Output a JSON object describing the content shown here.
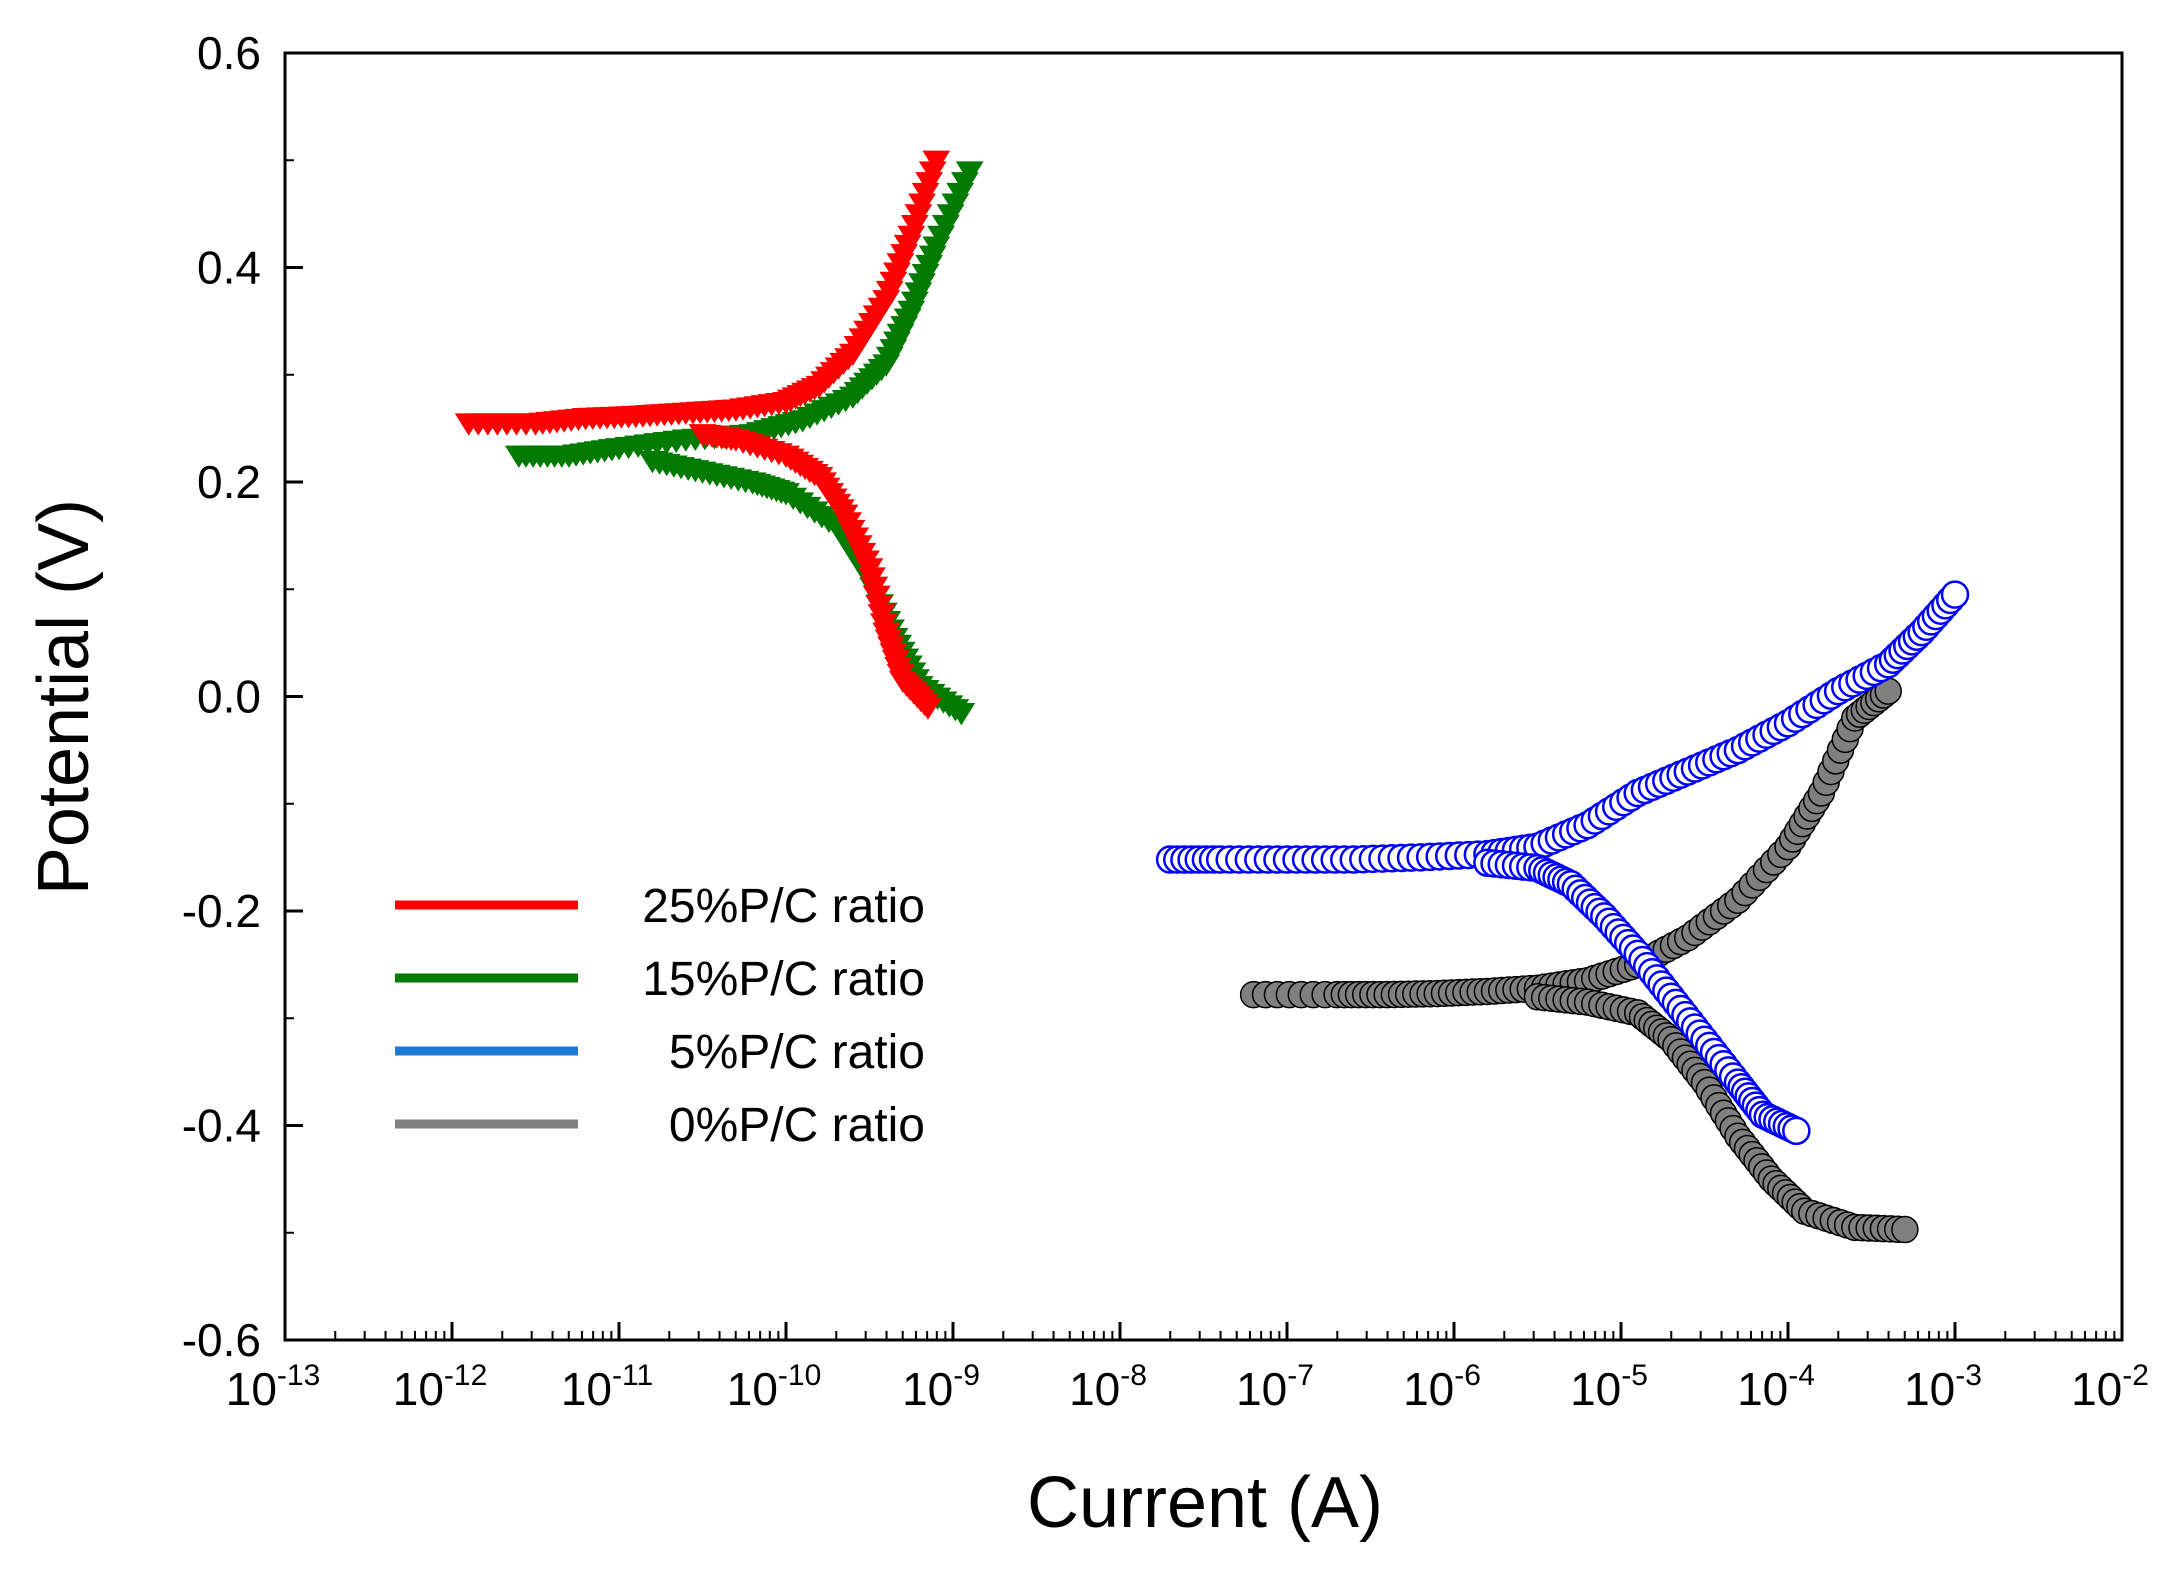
{
  "chart_data": {
    "type": "scatter",
    "title": "",
    "xlabel": "Current (A)",
    "ylabel": "Potential (V)",
    "xscale": "log",
    "xlim_exponent": [
      -13,
      -2
    ],
    "ylim": [
      -0.6,
      0.6
    ],
    "x_tick_base": "10",
    "x_tick_exponents": [
      "-13",
      "-12",
      "-11",
      "-10",
      "-9",
      "-8",
      "-7",
      "-6",
      "-5",
      "-4",
      "-3",
      "-2"
    ],
    "y_ticks": [
      "0.6",
      "0.4",
      "0.2",
      "0.0",
      "-0.2",
      "-0.4",
      "-0.6"
    ],
    "y_tick_values": [
      0.6,
      0.4,
      0.2,
      0.0,
      -0.2,
      -0.4,
      -0.6
    ],
    "grid": false,
    "legend_position": "lower-left",
    "series": [
      {
        "name": "25%P/C ratio",
        "color": "#ff0000",
        "marker": "triangle-down",
        "anodic": [
          [
            -11.9,
            0.255
          ],
          [
            -11.5,
            0.255
          ],
          [
            -11.2,
            0.26
          ],
          [
            -10.9,
            0.262
          ],
          [
            -10.6,
            0.265
          ],
          [
            -10.3,
            0.268
          ],
          [
            -10.0,
            0.275
          ],
          [
            -9.8,
            0.29
          ],
          [
            -9.6,
            0.32
          ],
          [
            -9.4,
            0.37
          ],
          [
            -9.25,
            0.43
          ],
          [
            -9.1,
            0.5
          ]
        ],
        "cathodic": [
          [
            -10.5,
            0.245
          ],
          [
            -10.3,
            0.24
          ],
          [
            -10.0,
            0.225
          ],
          [
            -9.8,
            0.205
          ],
          [
            -9.65,
            0.17
          ],
          [
            -9.5,
            0.12
          ],
          [
            -9.4,
            0.06
          ],
          [
            -9.3,
            0.015
          ],
          [
            -9.15,
            -0.01
          ]
        ]
      },
      {
        "name": "15%P/C ratio",
        "color": "#007a00",
        "marker": "triangle-down",
        "anodic": [
          [
            -11.6,
            0.225
          ],
          [
            -11.3,
            0.225
          ],
          [
            -11.0,
            0.232
          ],
          [
            -10.6,
            0.24
          ],
          [
            -10.2,
            0.245
          ],
          [
            -9.9,
            0.258
          ],
          [
            -9.6,
            0.28
          ],
          [
            -9.4,
            0.31
          ],
          [
            -9.25,
            0.36
          ],
          [
            -9.1,
            0.42
          ],
          [
            -8.9,
            0.49
          ]
        ],
        "cathodic": [
          [
            -10.8,
            0.22
          ],
          [
            -10.5,
            0.21
          ],
          [
            -10.2,
            0.2
          ],
          [
            -10.0,
            0.19
          ],
          [
            -9.7,
            0.16
          ],
          [
            -9.5,
            0.11
          ],
          [
            -9.35,
            0.055
          ],
          [
            -9.2,
            0.01
          ],
          [
            -8.95,
            -0.015
          ]
        ]
      },
      {
        "name": "5%P/C ratio",
        "color": "#0000ff",
        "marker": "circle-open",
        "anodic": [
          [
            -7.7,
            -0.152
          ],
          [
            -7.4,
            -0.152
          ],
          [
            -7.0,
            -0.152
          ],
          [
            -6.6,
            -0.152
          ],
          [
            -6.2,
            -0.15
          ],
          [
            -5.8,
            -0.147
          ],
          [
            -5.5,
            -0.14
          ],
          [
            -5.2,
            -0.12
          ],
          [
            -4.9,
            -0.09
          ],
          [
            -4.6,
            -0.07
          ],
          [
            -4.3,
            -0.05
          ],
          [
            -4.0,
            -0.025
          ],
          [
            -3.7,
            0.005
          ],
          [
            -3.4,
            0.03
          ],
          [
            -3.2,
            0.06
          ],
          [
            -3.0,
            0.095
          ]
        ],
        "cathodic": [
          [
            -5.8,
            -0.155
          ],
          [
            -5.5,
            -0.16
          ],
          [
            -5.3,
            -0.175
          ],
          [
            -5.1,
            -0.205
          ],
          [
            -4.9,
            -0.24
          ],
          [
            -4.7,
            -0.28
          ],
          [
            -4.5,
            -0.32
          ],
          [
            -4.3,
            -0.36
          ],
          [
            -4.15,
            -0.39
          ],
          [
            -3.95,
            -0.405
          ]
        ]
      },
      {
        "name": "0%P/C ratio",
        "color": "#808080",
        "marker": "circle-filled",
        "anodic": [
          [
            -7.2,
            -0.278
          ],
          [
            -6.7,
            -0.278
          ],
          [
            -6.4,
            -0.278
          ],
          [
            -6.1,
            -0.277
          ],
          [
            -5.8,
            -0.275
          ],
          [
            -5.5,
            -0.272
          ],
          [
            -5.2,
            -0.265
          ],
          [
            -4.9,
            -0.25
          ],
          [
            -4.6,
            -0.225
          ],
          [
            -4.3,
            -0.19
          ],
          [
            -4.0,
            -0.14
          ],
          [
            -3.8,
            -0.09
          ],
          [
            -3.6,
            -0.02
          ],
          [
            -3.4,
            0.005
          ]
        ],
        "cathodic": [
          [
            -5.5,
            -0.28
          ],
          [
            -5.2,
            -0.285
          ],
          [
            -4.9,
            -0.295
          ],
          [
            -4.7,
            -0.32
          ],
          [
            -4.5,
            -0.36
          ],
          [
            -4.3,
            -0.41
          ],
          [
            -4.1,
            -0.45
          ],
          [
            -3.9,
            -0.48
          ],
          [
            -3.6,
            -0.495
          ],
          [
            -3.3,
            -0.497
          ]
        ]
      }
    ]
  }
}
